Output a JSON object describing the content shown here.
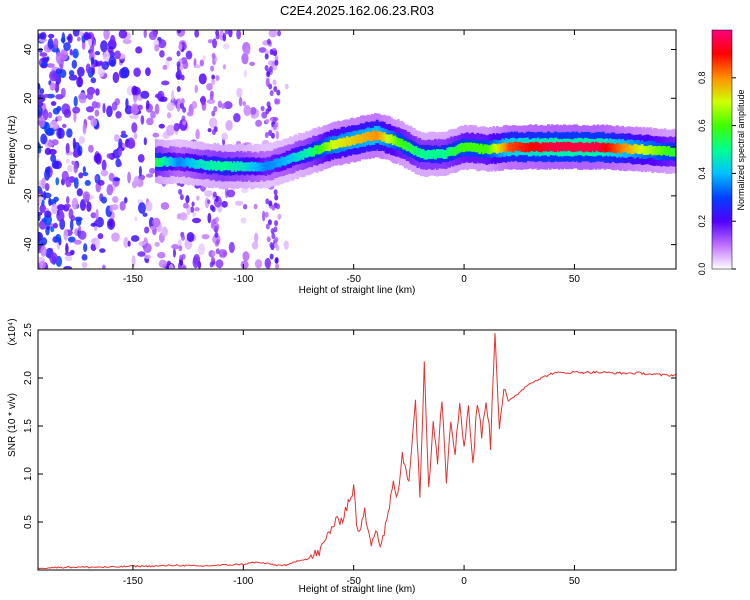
{
  "title": "C2E4.2025.162.06.23.R03",
  "chart_data": [
    {
      "type": "heatmap",
      "xlabel": "Height of straight line (km)",
      "ylabel": "Frequency (Hz)",
      "xlim": [
        -193,
        96
      ],
      "ylim": [
        -50,
        48
      ],
      "xticks": [
        -150,
        -100,
        -50,
        0,
        50
      ],
      "xtick_labels": [
        "-150",
        "-100",
        "-50",
        "0",
        "50"
      ],
      "yticks": [
        -40,
        -20,
        0,
        20,
        40
      ],
      "ytick_labels": [
        "-40",
        "-20",
        "0",
        "20",
        "40"
      ],
      "colorbar": {
        "label": "Normalized spectral amplitude",
        "range": [
          0,
          1
        ],
        "ticks": [
          0.0,
          0.2,
          0.4,
          0.6,
          0.8
        ],
        "tick_labels": [
          "0.0",
          "0.2",
          "0.4",
          "0.6",
          "0.8"
        ],
        "colors": [
          "#ffffff",
          "#c070ff",
          "#5000ff",
          "#0040ff",
          "#00c0ff",
          "#00ff90",
          "#40ff00",
          "#d0ff00",
          "#ff9000",
          "#ff0000",
          "#ff0080"
        ]
      },
      "ridge": {
        "x": [
          -140,
          -130,
          -120,
          -110,
          -100,
          -90,
          -80,
          -70,
          -60,
          -50,
          -40,
          -30,
          -20,
          -10,
          0,
          10,
          20,
          40,
          60,
          80,
          96
        ],
        "y": [
          -6,
          -6,
          -7,
          -8,
          -8,
          -8,
          -5,
          -2,
          1,
          3,
          5,
          2,
          -3,
          -3,
          0,
          -1,
          0,
          0,
          0,
          -1,
          -2
        ],
        "amplitude": [
          0.55,
          0.35,
          0.45,
          0.5,
          0.45,
          0.35,
          0.4,
          0.5,
          0.7,
          0.75,
          0.8,
          0.6,
          0.5,
          0.5,
          0.6,
          0.6,
          0.85,
          0.95,
          0.95,
          0.7,
          0.55
        ]
      },
      "noise_band_x": [
        -193,
        -80
      ]
    },
    {
      "type": "line",
      "xlabel": "Height of straight line (km)",
      "ylabel": "SNR (10 * v/v)",
      "y_multiplier": "(x10⁴)",
      "xlim": [
        -193,
        96
      ],
      "ylim": [
        0,
        2.5
      ],
      "xticks": [
        -150,
        -100,
        -50,
        0,
        50
      ],
      "xtick_labels": [
        "-150",
        "-100",
        "-50",
        "0",
        "50"
      ],
      "yticks": [
        0.5,
        1.0,
        1.5,
        2.0,
        2.5
      ],
      "ytick_labels": [
        "0.5",
        "1.0",
        "1.5",
        "2.0",
        "2.5"
      ],
      "series": [
        {
          "color": "#e8302e",
          "x": [
            -193,
            -180,
            -160,
            -150,
            -140,
            -130,
            -120,
            -110,
            -100,
            -95,
            -90,
            -85,
            -80,
            -75,
            -70,
            -65,
            -60,
            -55,
            -50,
            -48,
            -45,
            -42,
            -40,
            -38,
            -35,
            -32,
            -30,
            -28,
            -25,
            -22,
            -20,
            -18,
            -16,
            -14,
            -12,
            -10,
            -8,
            -6,
            -4,
            -2,
            0,
            2,
            4,
            6,
            8,
            10,
            12,
            14,
            16,
            18,
            20,
            25,
            30,
            35,
            40,
            50,
            60,
            70,
            80,
            90,
            96
          ],
          "y": [
            0.02,
            0.03,
            0.03,
            0.04,
            0.04,
            0.05,
            0.04,
            0.05,
            0.06,
            0.08,
            0.07,
            0.05,
            0.05,
            0.1,
            0.12,
            0.2,
            0.45,
            0.55,
            0.85,
            0.35,
            0.6,
            0.3,
            0.45,
            0.25,
            0.5,
            0.9,
            0.75,
            1.2,
            0.95,
            1.75,
            0.8,
            2.12,
            0.85,
            1.6,
            1.15,
            1.8,
            0.95,
            1.6,
            1.2,
            1.75,
            1.3,
            1.7,
            1.1,
            1.75,
            1.4,
            1.8,
            1.3,
            2.5,
            1.5,
            1.9,
            1.75,
            1.85,
            1.95,
            2.0,
            2.05,
            2.06,
            2.06,
            2.05,
            2.05,
            2.03,
            2.03
          ]
        }
      ]
    }
  ]
}
